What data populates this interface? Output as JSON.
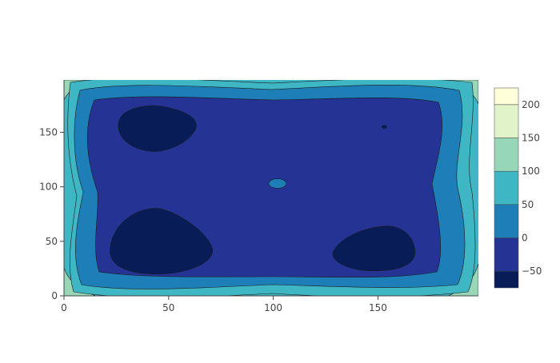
{
  "chart_data": {
    "type": "contour",
    "title": "",
    "xlabel": "",
    "ylabel": "",
    "xlim": [
      0,
      198
    ],
    "ylim": [
      0,
      198
    ],
    "x_ticks": [
      0,
      50,
      100,
      150
    ],
    "y_ticks": [
      0,
      50,
      100,
      150
    ],
    "levels": [
      -75,
      -50,
      0,
      50,
      100,
      150,
      200,
      225
    ],
    "colorbar": {
      "range": [
        -75,
        225
      ],
      "ticks": [
        -50,
        0,
        50,
        100,
        150,
        200
      ],
      "tick_labels": [
        "−50",
        "0",
        "50",
        "100",
        "150",
        "200"
      ],
      "colors": [
        "#081d58",
        "#253494",
        "#1d7eb8",
        "#3fb6c4",
        "#98d6b8",
        "#e1f3c8",
        "#ffffd9"
      ],
      "position": "right"
    },
    "background_level_color": "#3fb6c4",
    "regions": [
      {
        "name": "band-100",
        "level": 100,
        "color": "#98d6b8",
        "description": "corner regions near the plot edges"
      },
      {
        "name": "band-50",
        "level": 50,
        "color": "#3fb6c4",
        "description": "outer frame"
      },
      {
        "name": "band-0",
        "level": 0,
        "color": "#1d7eb8",
        "description": "inner frame"
      },
      {
        "name": "band-minus50",
        "level": -50,
        "color": "#253494",
        "description": "central plateau"
      },
      {
        "name": "min-top-left",
        "level": -75,
        "color": "#081d58",
        "center": [
          42,
          155
        ]
      },
      {
        "name": "min-bottom-left",
        "level": -75,
        "color": "#081d58",
        "center": [
          42,
          42
        ]
      },
      {
        "name": "min-bottom-right",
        "level": -75,
        "color": "#081d58",
        "center": [
          150,
          42
        ]
      },
      {
        "name": "bump-center",
        "level": 0,
        "color": "#1d7eb8",
        "center": [
          102,
          103
        ]
      },
      {
        "name": "dip-small",
        "level": -75,
        "color": "#081d58",
        "center": [
          153,
          155
        ]
      }
    ]
  }
}
